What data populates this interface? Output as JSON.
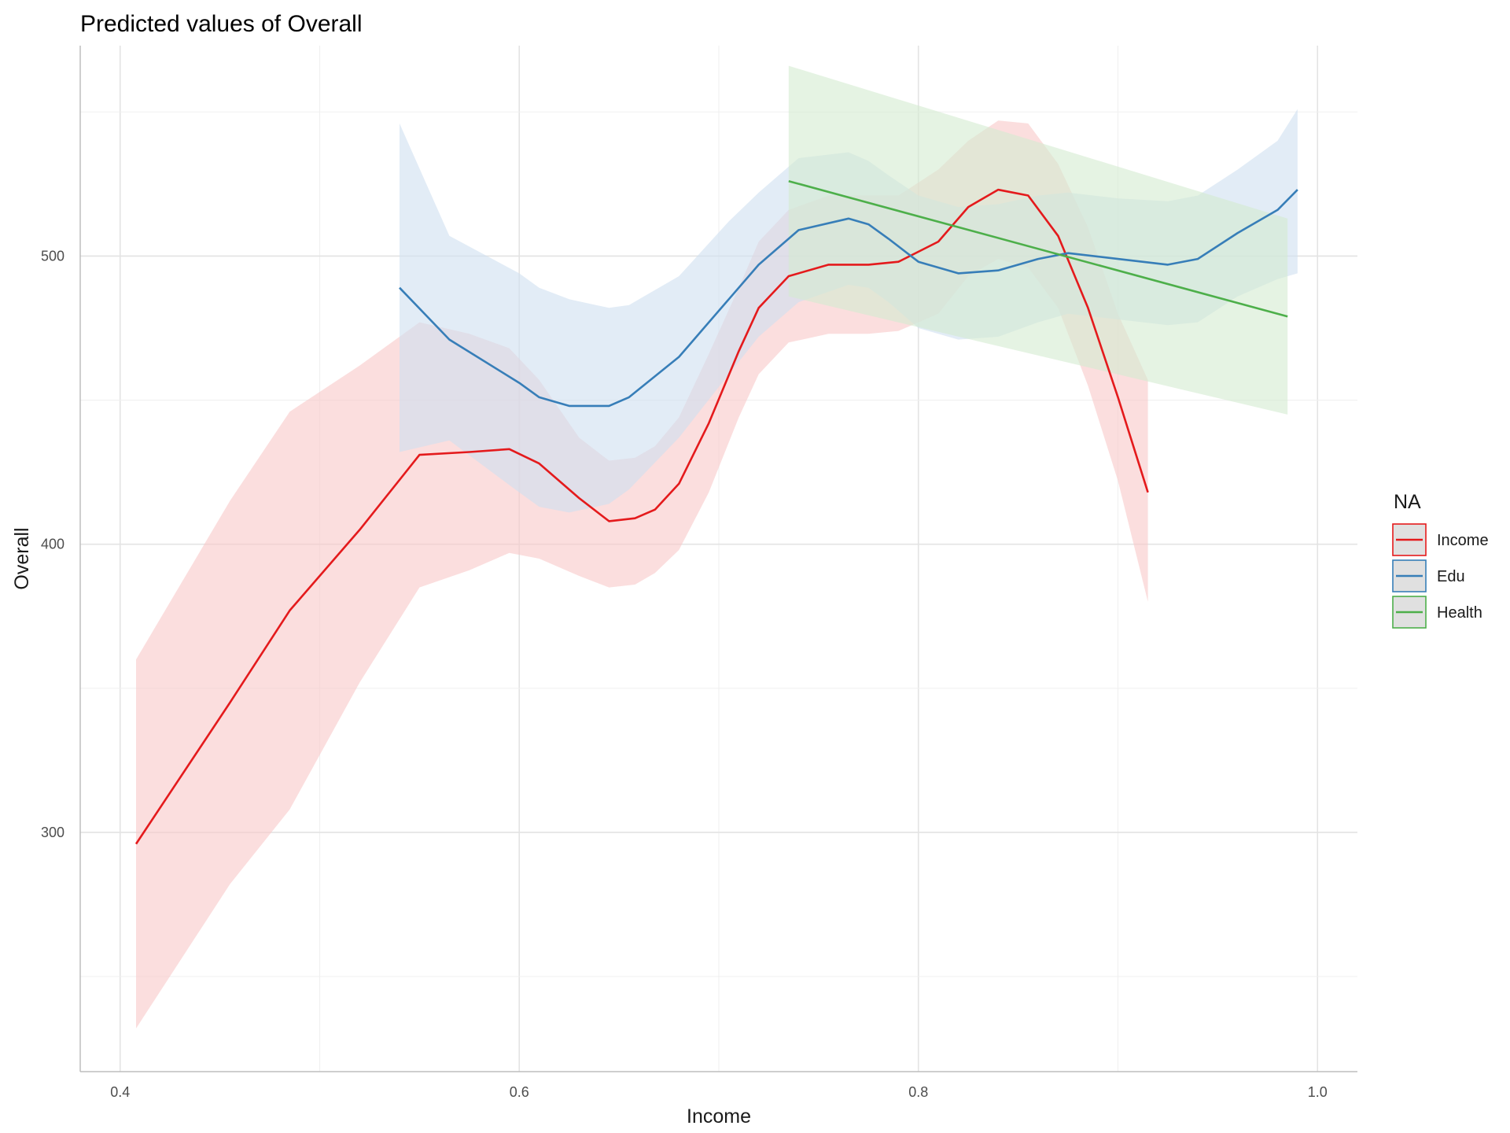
{
  "chart_data": {
    "type": "line",
    "title": "Predicted values of Overall",
    "xlabel": "Income",
    "ylabel": "Overall",
    "xlim": [
      0.38,
      1.02
    ],
    "ylim": [
      217,
      573
    ],
    "x_ticks": [
      0.4,
      0.6,
      0.8,
      1.0
    ],
    "x_tick_labels": [
      "0.4",
      "0.6",
      "0.8",
      "1.0"
    ],
    "y_ticks": [
      300,
      400,
      500
    ],
    "y_tick_labels": [
      "300",
      "400",
      "500"
    ],
    "grid": true,
    "legend": {
      "title": "NA",
      "position": "right"
    },
    "series": [
      {
        "name": "Income",
        "color": "#e41a1c",
        "fill": "#f8c8c8",
        "x": [
          0.408,
          0.455,
          0.485,
          0.52,
          0.55,
          0.575,
          0.595,
          0.61,
          0.63,
          0.645,
          0.658,
          0.668,
          0.68,
          0.695,
          0.71,
          0.72,
          0.735,
          0.755,
          0.775,
          0.79,
          0.81,
          0.825,
          0.84,
          0.855,
          0.87,
          0.885,
          0.9,
          0.915
        ],
        "y": [
          296,
          345,
          377,
          405,
          431,
          432,
          433,
          428,
          416,
          408,
          409,
          412,
          421,
          442,
          467,
          482,
          493,
          497,
          497,
          498,
          505,
          517,
          523,
          521,
          507,
          482,
          451,
          418
        ],
        "upper": [
          360,
          415,
          446,
          462,
          477,
          473,
          468,
          457,
          437,
          429,
          430,
          434,
          444,
          466,
          489,
          505,
          516,
          521,
          521,
          521,
          530,
          540,
          547,
          546,
          532,
          510,
          480,
          457
        ],
        "lower": [
          232,
          282,
          308,
          352,
          385,
          391,
          397,
          395,
          389,
          385,
          386,
          390,
          398,
          418,
          444,
          459,
          470,
          473,
          473,
          474,
          480,
          493,
          499,
          496,
          482,
          455,
          422,
          380
        ]
      },
      {
        "name": "Edu",
        "color": "#377eb8",
        "fill": "#cfe0f0",
        "x": [
          0.54,
          0.565,
          0.6,
          0.61,
          0.625,
          0.645,
          0.655,
          0.68,
          0.705,
          0.72,
          0.74,
          0.765,
          0.775,
          0.785,
          0.8,
          0.82,
          0.84,
          0.86,
          0.875,
          0.9,
          0.925,
          0.94,
          0.96,
          0.98,
          0.99
        ],
        "y": [
          489,
          471,
          456,
          451,
          448,
          448,
          451,
          465,
          485,
          497,
          509,
          513,
          511,
          506,
          498,
          494,
          495,
          499,
          501,
          499,
          497,
          499,
          508,
          516,
          523
        ],
        "upper": [
          546,
          507,
          494,
          489,
          485,
          482,
          483,
          493,
          512,
          522,
          534,
          536,
          533,
          528,
          521,
          517,
          518,
          521,
          522,
          520,
          519,
          521,
          530,
          540,
          551
        ],
        "lower": [
          432,
          436,
          418,
          413,
          411,
          414,
          419,
          437,
          459,
          472,
          484,
          490,
          489,
          484,
          475,
          471,
          472,
          477,
          480,
          478,
          476,
          477,
          486,
          492,
          494
        ]
      },
      {
        "name": "Health",
        "color": "#4daf4a",
        "fill": "#d4ebd0",
        "x": [
          0.735,
          0.985
        ],
        "y": [
          526,
          479
        ],
        "upper": [
          566,
          513
        ],
        "lower": [
          486,
          445
        ]
      }
    ]
  }
}
